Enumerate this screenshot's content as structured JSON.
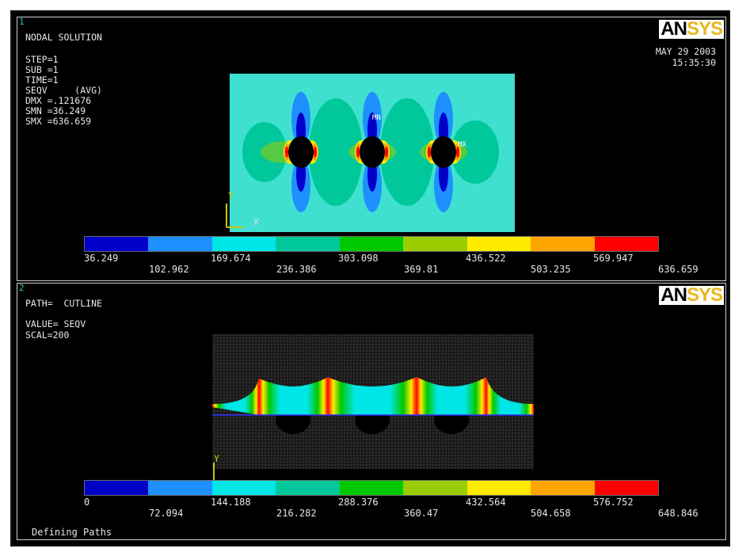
{
  "panel1": {
    "number": "1",
    "title": "NODAL SOLUTION",
    "info": [
      "STEP=1",
      "SUB =1",
      "TIME=1",
      "SEQV     (AVG)",
      "DMX =.121676",
      "SMN =36.249",
      "SMX =636.659"
    ],
    "date": "MAY 29 2003",
    "time": "15:35:30",
    "logo_an": "AN",
    "logo_sys": "SYS",
    "axis_y": "Y",
    "axis_x": "X",
    "mn": "MN",
    "mx": "MX",
    "legend_top": [
      "36.249",
      "169.674",
      "303.098",
      "436.522",
      "569.947"
    ],
    "legend_bottom": [
      "102.962",
      "236.386",
      "369.81",
      "503.235",
      "636.659"
    ]
  },
  "panel2": {
    "number": "2",
    "info": [
      "PATH=  CUTLINE",
      "",
      "VALUE= SEQV",
      "SCAL=200"
    ],
    "logo_an": "AN",
    "logo_sys": "SYS",
    "axis_y": "Y",
    "legend_top": [
      "0",
      "144.188",
      "288.376",
      "432.564",
      "576.752"
    ],
    "legend_bottom": [
      "72.094",
      "216.282",
      "360.47",
      "504.658",
      "648.846"
    ]
  },
  "status": "Defining Paths",
  "colors": {
    "contour": [
      "#0000c8",
      "#1e90ff",
      "#00e5e5",
      "#00c89a",
      "#00c800",
      "#9acd00",
      "#ffeb00",
      "#ffa500",
      "#ff0000"
    ],
    "background": "#000000",
    "logo_gold": "#e7b81d",
    "panel_number": "#2ec9c9"
  }
}
